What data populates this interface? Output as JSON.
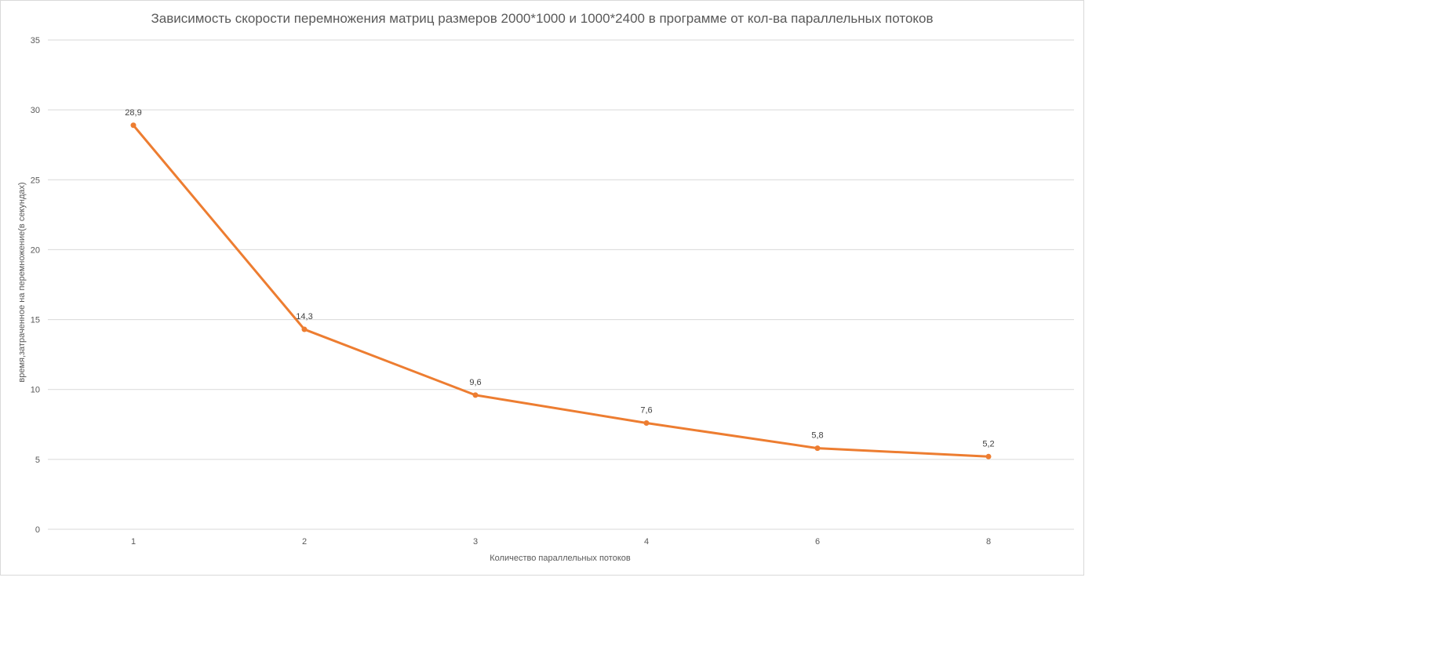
{
  "chart_data": {
    "type": "line",
    "title": "Зависимость скорости перемножения матриц размеров 2000*1000 и 1000*2400 в программе от кол-ва параллельных потоков",
    "xlabel": "Количество  параллельных потоков",
    "ylabel": "время,затраченное  на перемножение(в  секундах)",
    "categories": [
      "1",
      "2",
      "3",
      "4",
      "6",
      "8"
    ],
    "series": [
      {
        "values": [
          28.9,
          14.3,
          9.6,
          7.6,
          5.8,
          5.2
        ],
        "data_labels": [
          "28,9",
          "14,3",
          "9,6",
          "7,6",
          "5,8",
          "5,2"
        ]
      }
    ],
    "ylim": [
      0,
      35
    ],
    "yticks": [
      0,
      5,
      10,
      15,
      20,
      25,
      30,
      35
    ],
    "grid": true,
    "legend": "none",
    "colors": {
      "series": "#ed7d31",
      "grid": "#d9d9d9",
      "text": "#595959"
    }
  }
}
